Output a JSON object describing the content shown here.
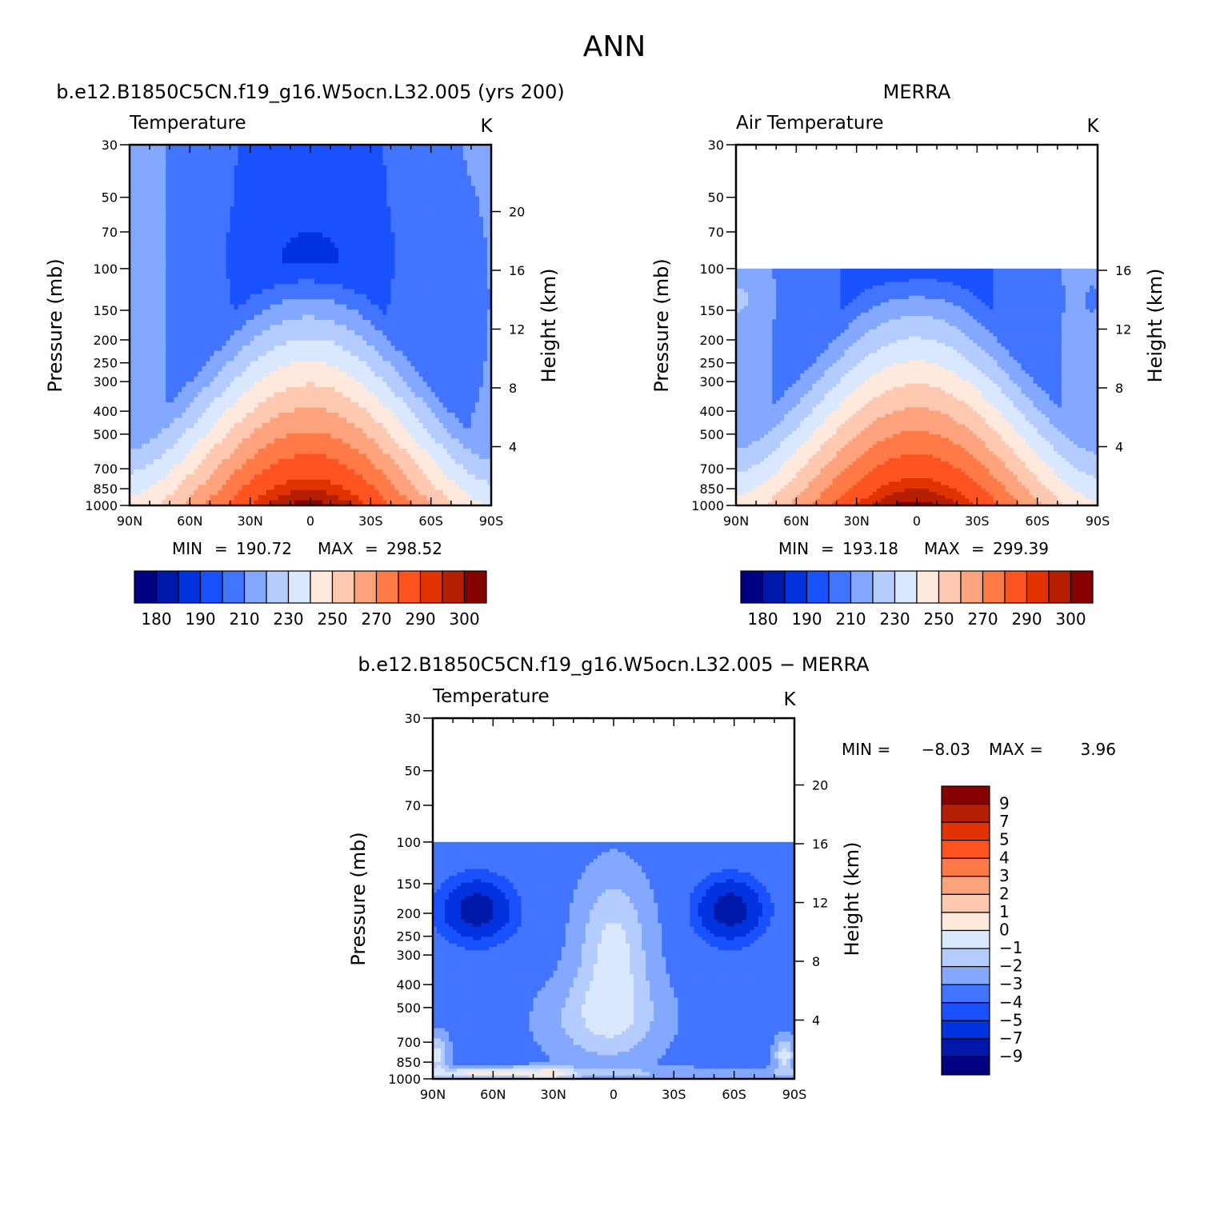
{
  "figure": {
    "title": "ANN",
    "diff_title": "b.e12.B1850C5CN.f19_g16.W5ocn.L32.005 − MERRA"
  },
  "colors": {
    "temperature_scale": [
      "#000080",
      "#0018a8",
      "#0033dd",
      "#1a51ff",
      "#4275ff",
      "#82a8ff",
      "#b4ccff",
      "#d9e8ff",
      "#ffe8dc",
      "#ffc8b0",
      "#ffa37c",
      "#ff7a46",
      "#ff5420",
      "#e03300",
      "#b51f00",
      "#870000"
    ],
    "diff_scale": [
      "#000080",
      "#0018a8",
      "#0033dd",
      "#1a51ff",
      "#4275ff",
      "#82a8ff",
      "#b4ccff",
      "#d9e8ff",
      "#ffe8dc",
      "#ffc8b0",
      "#ffa37c",
      "#ff7a46",
      "#ff5420",
      "#e03300",
      "#b51f00",
      "#870000"
    ]
  },
  "chart_data": [
    {
      "id": "model",
      "type": "heatmap",
      "title": "b.e12.B1850C5CN.f19_g16.W5ocn.L32.005 (yrs 200)",
      "variable": "Temperature",
      "units": "K",
      "ylabel": "Pressure (mb)",
      "ylabel_right": "Height (km)",
      "x_ticks": [
        "90N",
        "60N",
        "30N",
        "0",
        "30S",
        "60S",
        "90S"
      ],
      "y_ticks": [
        "30",
        "50",
        "70",
        "100",
        "150",
        "200",
        "250",
        "300",
        "400",
        "500",
        "700",
        "850",
        "1000"
      ],
      "y_right_ticks": [
        "20",
        "16",
        "12",
        "8",
        "4"
      ],
      "xlim": [
        90,
        -90
      ],
      "ylim": [
        1000,
        30
      ],
      "y_log": true,
      "data_top_hpa": 30,
      "min_label": "MIN",
      "min": "190.72",
      "max_label": "MAX",
      "max": "298.52",
      "colorbar_labels": [
        "180",
        "190",
        "210",
        "230",
        "250",
        "270",
        "290",
        "300"
      ],
      "colorbar_levels": [
        175,
        180,
        185,
        190,
        200,
        210,
        220,
        230,
        240,
        250,
        260,
        270,
        280,
        290,
        295,
        300
      ]
    },
    {
      "id": "merra",
      "type": "heatmap",
      "title": "MERRA",
      "variable": "Air Temperature",
      "units": "K",
      "ylabel": "Pressure (mb)",
      "ylabel_right": "Height (km)",
      "x_ticks": [
        "90N",
        "60N",
        "30N",
        "0",
        "30S",
        "60S",
        "90S"
      ],
      "y_ticks": [
        "30",
        "50",
        "70",
        "100",
        "150",
        "200",
        "250",
        "300",
        "400",
        "500",
        "700",
        "850",
        "1000"
      ],
      "y_right_ticks": [
        "16",
        "12",
        "8",
        "4"
      ],
      "xlim": [
        90,
        -90
      ],
      "ylim": [
        1000,
        30
      ],
      "y_log": true,
      "data_top_hpa": 100,
      "min_label": "MIN",
      "min": "193.18",
      "max_label": "MAX",
      "max": "299.39",
      "colorbar_labels": [
        "180",
        "190",
        "210",
        "230",
        "250",
        "270",
        "290",
        "300"
      ],
      "colorbar_levels": [
        175,
        180,
        185,
        190,
        200,
        210,
        220,
        230,
        240,
        250,
        260,
        270,
        280,
        290,
        295,
        300
      ]
    },
    {
      "id": "diff",
      "type": "heatmap",
      "variable": "Temperature",
      "units": "K",
      "ylabel": "Pressure (mb)",
      "ylabel_right": "Height (km)",
      "x_ticks": [
        "90N",
        "60N",
        "30N",
        "0",
        "30S",
        "60S",
        "90S"
      ],
      "y_ticks": [
        "30",
        "50",
        "70",
        "100",
        "150",
        "200",
        "250",
        "300",
        "400",
        "500",
        "700",
        "850",
        "1000"
      ],
      "y_right_ticks": [
        "20",
        "16",
        "12",
        "8",
        "4"
      ],
      "xlim": [
        90,
        -90
      ],
      "ylim": [
        1000,
        30
      ],
      "y_log": true,
      "data_top_hpa": 100,
      "min_label": "MIN =",
      "min": "−8.03",
      "max_label": "MAX =",
      "max": "3.96",
      "colorbar_labels": [
        "9",
        "7",
        "5",
        "4",
        "3",
        "2",
        "1",
        "0",
        "−1",
        "−2",
        "−3",
        "−4",
        "−5",
        "−7",
        "−9"
      ],
      "colorbar_levels": [
        -10,
        -9,
        -7,
        -5,
        -4,
        -3,
        -2,
        -1,
        0,
        1,
        2,
        3,
        4,
        5,
        7,
        9,
        10
      ]
    }
  ]
}
